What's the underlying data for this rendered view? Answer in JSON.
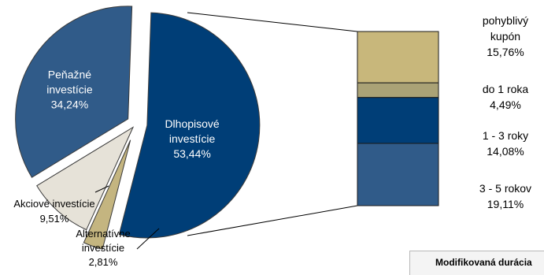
{
  "chart_data": {
    "type": "pie",
    "slices": [
      {
        "label": "Dlhopisové investície",
        "value": 53.44,
        "value_label": "53,44%",
        "color": "#003e77"
      },
      {
        "label": "Alternatívne investície",
        "value": 2.81,
        "value_label": "2,81%",
        "color": "#c4b580"
      },
      {
        "label": "Akciové investície",
        "value": 9.51,
        "value_label": "9,51%",
        "color": "#e6e2d8"
      },
      {
        "label": "Peňažné investície",
        "value": 34.24,
        "value_label": "34,24%",
        "color": "#305b89"
      }
    ],
    "breakdown": {
      "of": "Dlhopisové investície",
      "type": "stacked-bar",
      "segments": [
        {
          "label": "pohyblivý kupón",
          "value": 15.76,
          "value_label": "15,76%",
          "color": "#c8b77b"
        },
        {
          "label": "do 1 roka",
          "value": 4.49,
          "value_label": "4,49%",
          "color": "#aaa276"
        },
        {
          "label": "1 - 3 roky",
          "value": 14.08,
          "value_label": "14,08%",
          "color": "#003e77"
        },
        {
          "label": "3 - 5 rokov",
          "value": 19.11,
          "value_label": "19,11%",
          "color": "#305b89"
        }
      ]
    }
  },
  "note": {
    "text": "Modifikovaná durácia"
  }
}
